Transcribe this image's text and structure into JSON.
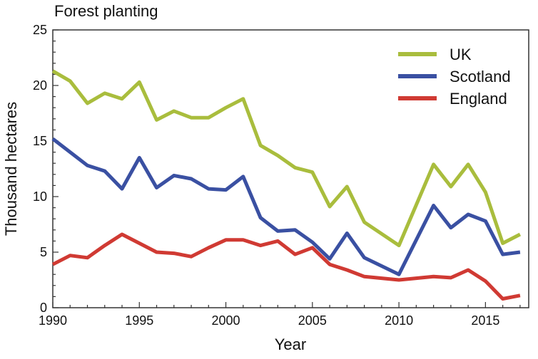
{
  "chart_data": {
    "type": "line",
    "title": "Forest planting",
    "xlabel": "Year",
    "ylabel": "Thousand hectares",
    "xlim": [
      1990,
      2017.5
    ],
    "ylim": [
      0,
      25
    ],
    "xticks": [
      1990,
      1995,
      2000,
      2005,
      2010,
      2015
    ],
    "yticks": [
      0,
      5,
      10,
      15,
      20,
      25
    ],
    "legend_position": "top-right",
    "grid": false,
    "x": [
      1990,
      1991,
      1992,
      1993,
      1994,
      1995,
      1996,
      1997,
      1998,
      1999,
      2000,
      2001,
      2002,
      2003,
      2004,
      2005,
      2006,
      2007,
      2008,
      2010,
      2012,
      2013,
      2014,
      2015,
      2016,
      2017
    ],
    "series": [
      {
        "name": "UK",
        "color": "#a9bd3d",
        "values": [
          21.3,
          20.4,
          18.4,
          19.3,
          18.8,
          20.3,
          16.9,
          17.7,
          17.1,
          17.1,
          18.0,
          18.8,
          14.6,
          13.7,
          12.6,
          12.2,
          9.1,
          10.9,
          7.7,
          5.6,
          12.9,
          10.9,
          12.9,
          10.4,
          5.8,
          6.6
        ]
      },
      {
        "name": "Scotland",
        "color": "#3a50a2",
        "values": [
          15.2,
          14.0,
          12.8,
          12.3,
          10.7,
          13.5,
          10.8,
          11.9,
          11.6,
          10.7,
          10.6,
          11.8,
          8.1,
          6.9,
          7.0,
          5.9,
          4.4,
          6.7,
          4.5,
          3.0,
          9.2,
          7.2,
          8.4,
          7.8,
          4.8,
          5.0
        ]
      },
      {
        "name": "England",
        "color": "#d03a33",
        "values": [
          3.9,
          4.7,
          4.5,
          5.6,
          6.6,
          5.8,
          5.0,
          4.9,
          4.6,
          5.4,
          6.1,
          6.1,
          5.6,
          6.0,
          4.8,
          5.4,
          3.9,
          3.4,
          2.8,
          2.5,
          2.8,
          2.7,
          3.4,
          2.4,
          0.8,
          1.1
        ]
      }
    ]
  }
}
